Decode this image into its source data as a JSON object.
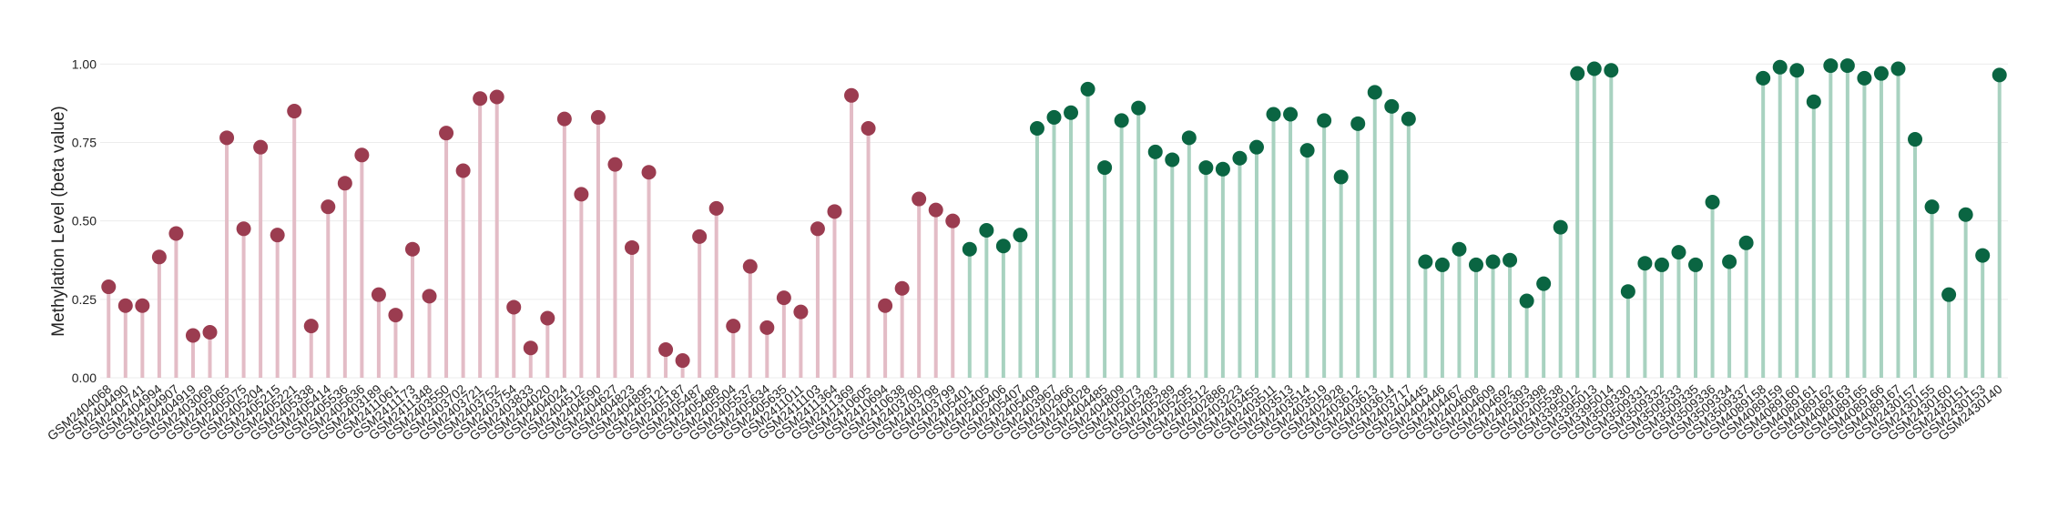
{
  "chart_data": {
    "type": "lollipop",
    "ylabel": "Methylation Level (beta value)",
    "ylim": [
      0,
      1.03
    ],
    "yticks": [
      {
        "value": 0,
        "label": "0.00"
      },
      {
        "value": 0.25,
        "label": "0.25"
      },
      {
        "value": 0.5,
        "label": "0.50"
      },
      {
        "value": 0.75,
        "label": "0.75"
      },
      {
        "value": 1,
        "label": "1.00"
      }
    ],
    "grid": true,
    "categories": [
      "GSM2404068",
      "GSM2404490",
      "GSM2404741",
      "GSM2404994",
      "GSM2404907",
      "GSM2404919",
      "GSM2403069",
      "GSM2405065",
      "GSM2405075",
      "GSM2405204",
      "GSM2405215",
      "GSM2405221",
      "GSM2405338",
      "GSM2405414",
      "GSM2405536",
      "GSM2405636",
      "GSM2403189",
      "GSM2411061",
      "GSM2411173",
      "GSM2411348",
      "GSM2403550",
      "GSM2403702",
      "GSM2403721",
      "GSM2403752",
      "GSM2403754",
      "GSM2403833",
      "GSM2404020",
      "GSM2404024",
      "GSM2404512",
      "GSM2404590",
      "GSM2404627",
      "GSM2404823",
      "GSM2404895",
      "GSM2405121",
      "GSM2405187",
      "GSM2405487",
      "GSM2405488",
      "GSM2405504",
      "GSM2405537",
      "GSM2405634",
      "GSM2405635",
      "GSM2411011",
      "GSM2411103",
      "GSM2411364",
      "GSM2411369",
      "GSM2410605",
      "GSM2410694",
      "GSM2410638",
      "GSM2403780",
      "GSM2403798",
      "GSM2403799",
      "GSM2405401",
      "GSM2405405",
      "GSM2405406",
      "GSM2405407",
      "GSM2405409",
      "GSM2403967",
      "GSM2402966",
      "GSM2404028",
      "GSM2404485",
      "GSM2404809",
      "GSM2405073",
      "GSM2405283",
      "GSM2405289",
      "GSM2405295",
      "GSM2405512",
      "GSM2402886",
      "GSM2403223",
      "GSM2403455",
      "GSM2403511",
      "GSM2403513",
      "GSM2403514",
      "GSM2403519",
      "GSM2402928",
      "GSM2403612",
      "GSM2403613",
      "GSM2403614",
      "GSM2403717",
      "GSM2404445",
      "GSM2404446",
      "GSM2404467",
      "GSM2404608",
      "GSM2404609",
      "GSM2404692",
      "GSM2405393",
      "GSM2405398",
      "GSM2405538",
      "GSM3395012",
      "GSM3395013",
      "GSM3395014",
      "GSM3509330",
      "GSM3509331",
      "GSM3509332",
      "GSM3509333",
      "GSM3509335",
      "GSM3509336",
      "GSM3509334",
      "GSM3509337",
      "GSM4089158",
      "GSM4089159",
      "GSM4089160",
      "GSM4089161",
      "GSM4089162",
      "GSM4089163",
      "GSM4089165",
      "GSM4089166",
      "GSM4089167",
      "GSM2430157",
      "GSM2430155",
      "GSM2430160",
      "GSM2430151",
      "GSM2430153",
      "GSM2430140"
    ],
    "series": [
      {
        "color": "#9b3c50",
        "stem_color": "#e3bcc6",
        "values": [
          0.29,
          0.23,
          0.23,
          0.385,
          0.46,
          0.135,
          0.145,
          0.765,
          0.475,
          0.735,
          0.455,
          0.85,
          0.165,
          0.545,
          0.62,
          0.71,
          0.265,
          0.2,
          0.41,
          0.26,
          0.78,
          0.66,
          0.89,
          0.895,
          0.225,
          0.095,
          0.19,
          0.825,
          0.585,
          0.83,
          0.68,
          0.415,
          0.655,
          0.09,
          0.055,
          0.45,
          0.54,
          0.165,
          0.355,
          0.16,
          0.255,
          0.21,
          0.475,
          0.53,
          0.9,
          0.795,
          0.23,
          0.285,
          0.57,
          0.535,
          0.5,
          null,
          null,
          null,
          null,
          null,
          null,
          null,
          null,
          null,
          null,
          null,
          null,
          null,
          null,
          null,
          null,
          null,
          null,
          null,
          null,
          null,
          null,
          null,
          null,
          null,
          null,
          null,
          null,
          null,
          null,
          null,
          null,
          null,
          null,
          null,
          null,
          null,
          null,
          null,
          null,
          null,
          null,
          null,
          null,
          null,
          null,
          null,
          null,
          null,
          null,
          null,
          null,
          null,
          null,
          null,
          null,
          null,
          null,
          null,
          null,
          null,
          null
        ]
      },
      {
        "color": "#0a6542",
        "stem_color": "#a8d2c0",
        "values": [
          null,
          null,
          null,
          null,
          null,
          null,
          null,
          null,
          null,
          null,
          null,
          null,
          null,
          null,
          null,
          null,
          null,
          null,
          null,
          null,
          null,
          null,
          null,
          null,
          null,
          null,
          null,
          null,
          null,
          null,
          null,
          null,
          null,
          null,
          null,
          null,
          null,
          null,
          null,
          null,
          null,
          null,
          null,
          null,
          null,
          null,
          null,
          null,
          null,
          null,
          null,
          0.41,
          0.47,
          0.42,
          0.455,
          0.795,
          0.83,
          0.845,
          0.92,
          0.67,
          0.82,
          0.86,
          0.72,
          0.695,
          0.765,
          0.67,
          0.665,
          0.7,
          0.735,
          0.84,
          0.84,
          0.725,
          0.82,
          0.64,
          0.81,
          0.91,
          0.865,
          0.825,
          0.37,
          0.36,
          0.41,
          0.36,
          0.37,
          0.375,
          0.245,
          0.3,
          0.48,
          0.97,
          0.985,
          0.98,
          0.275,
          0.365,
          0.36,
          0.4,
          0.36,
          0.56,
          0.37,
          0.43,
          0.955,
          0.99,
          0.98,
          0.88,
          0.995,
          0.995,
          0.955,
          0.97,
          0.985,
          0.76,
          0.545,
          0.265,
          0.52,
          0.39,
          0.965
        ]
      }
    ]
  }
}
